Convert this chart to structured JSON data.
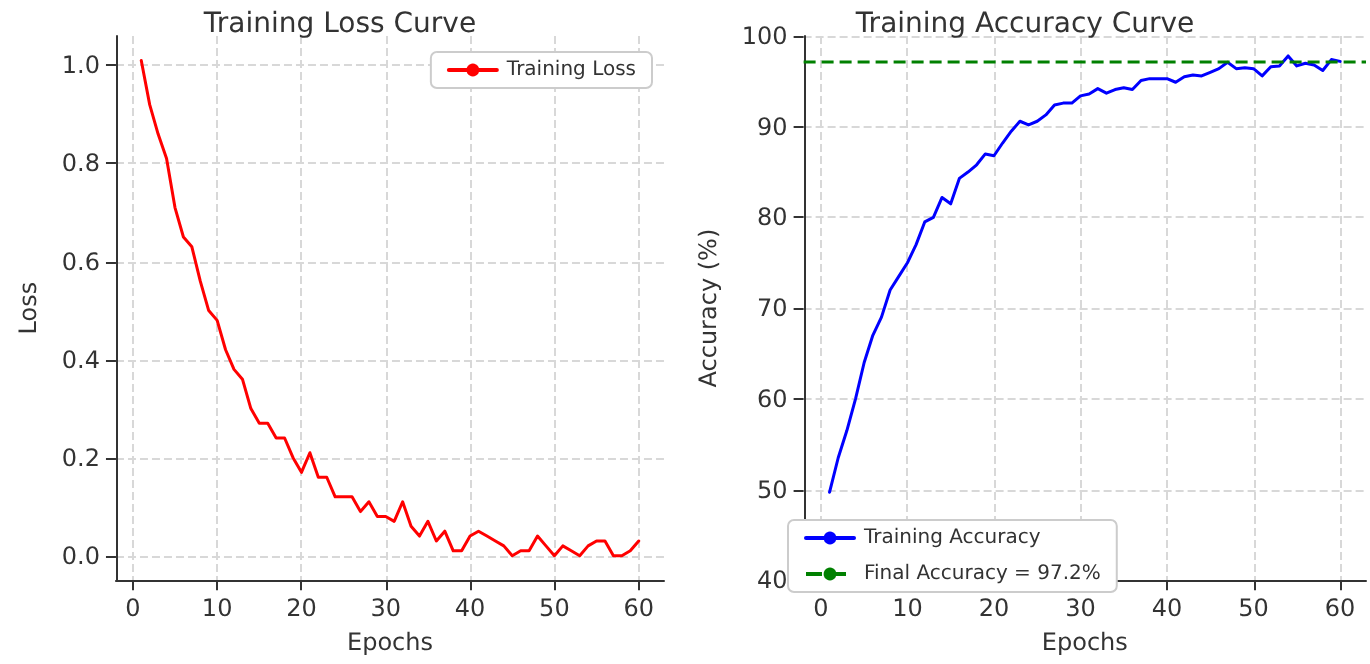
{
  "chart_data": [
    {
      "type": "line",
      "title": "Training Loss Curve",
      "xlabel": "Epochs",
      "ylabel": "Loss",
      "x": [
        1,
        2,
        3,
        4,
        5,
        6,
        7,
        8,
        9,
        10,
        11,
        12,
        13,
        14,
        15,
        16,
        17,
        18,
        19,
        20,
        21,
        22,
        23,
        24,
        25,
        26,
        27,
        28,
        29,
        30,
        31,
        32,
        33,
        34,
        35,
        36,
        37,
        38,
        39,
        40,
        41,
        42,
        43,
        44,
        45,
        46,
        47,
        48,
        49,
        50,
        51,
        52,
        53,
        54,
        55,
        56,
        57,
        58,
        59,
        60
      ],
      "series": [
        {
          "name": "Training Loss",
          "color": "#ff0000",
          "values": [
            1.01,
            0.92,
            0.86,
            0.81,
            0.71,
            0.65,
            0.63,
            0.56,
            0.5,
            0.48,
            0.42,
            0.38,
            0.36,
            0.3,
            0.27,
            0.27,
            0.24,
            0.24,
            0.2,
            0.17,
            0.21,
            0.16,
            0.16,
            0.12,
            0.12,
            0.12,
            0.09,
            0.11,
            0.08,
            0.08,
            0.07,
            0.11,
            0.06,
            0.04,
            0.07,
            0.03,
            0.05,
            0.01,
            0.01,
            0.04,
            0.05,
            0.04,
            0.03,
            0.02,
            0.0,
            0.01,
            0.01,
            0.04,
            0.02,
            0.0,
            0.02,
            0.01,
            0.0,
            0.02,
            0.03,
            0.03,
            0.0,
            0.0,
            0.01,
            0.03
          ]
        }
      ],
      "xlim": [
        -2,
        63
      ],
      "xticks": [
        0,
        10,
        20,
        30,
        40,
        50,
        60
      ],
      "ylim": [
        -0.05,
        1.06
      ],
      "yticks": [
        {
          "value": 0,
          "label": "0.0"
        },
        0.2,
        0.4,
        0.6,
        0.8,
        {
          "value": 1,
          "label": "1.0"
        }
      ],
      "grid": true,
      "legend": "top right",
      "line_style": "solid",
      "marker": "none"
    },
    {
      "type": "line",
      "title": "Training Accuracy Curve",
      "xlabel": "Epochs",
      "ylabel": "Accuracy (%)",
      "x": [
        1,
        2,
        3,
        4,
        5,
        6,
        7,
        8,
        9,
        10,
        11,
        12,
        13,
        14,
        15,
        16,
        17,
        18,
        19,
        20,
        21,
        22,
        23,
        24,
        25,
        26,
        27,
        28,
        29,
        30,
        31,
        32,
        33,
        34,
        35,
        36,
        37,
        38,
        39,
        40,
        41,
        42,
        43,
        44,
        45,
        46,
        47,
        48,
        49,
        50,
        51,
        52,
        53,
        54,
        55,
        56,
        57,
        58,
        59,
        60
      ],
      "series": [
        {
          "name": "Training Accuracy",
          "color": "#0000ff",
          "values": [
            49.7,
            53.5,
            56.5,
            60,
            64,
            67,
            69,
            72,
            73.5,
            75,
            77,
            79.5,
            80,
            82.2,
            81.5,
            84.3,
            85,
            85.8,
            87,
            86.8,
            88.2,
            89.5,
            90.6,
            90.2,
            90.6,
            91.3,
            92.4,
            92.6,
            92.6,
            93.4,
            93.6,
            94.2,
            93.7,
            94.1,
            94.3,
            94.1,
            95.1,
            95.3,
            95.3,
            95.3,
            94.9,
            95.5,
            95.7,
            95.6,
            96,
            96.4,
            97.1,
            96.4,
            96.5,
            96.4,
            95.6,
            96.6,
            96.7,
            97.8,
            96.7,
            97,
            96.8,
            96.2,
            97.4,
            97.2
          ]
        }
      ],
      "ref_lines": [
        {
          "axis": "y",
          "value": 97.2,
          "label": "Final Accuracy = 97.2%",
          "color": "#008000",
          "line_style": "dashed"
        }
      ],
      "xlim": [
        -2,
        63
      ],
      "xticks": [
        0,
        10,
        20,
        30,
        40,
        50,
        60
      ],
      "ylim": [
        40,
        100
      ],
      "yticks": [
        40,
        50,
        60,
        70,
        80,
        90,
        100
      ],
      "grid": true,
      "legend": "bottom left",
      "line_style": "solid",
      "marker": "none"
    }
  ]
}
